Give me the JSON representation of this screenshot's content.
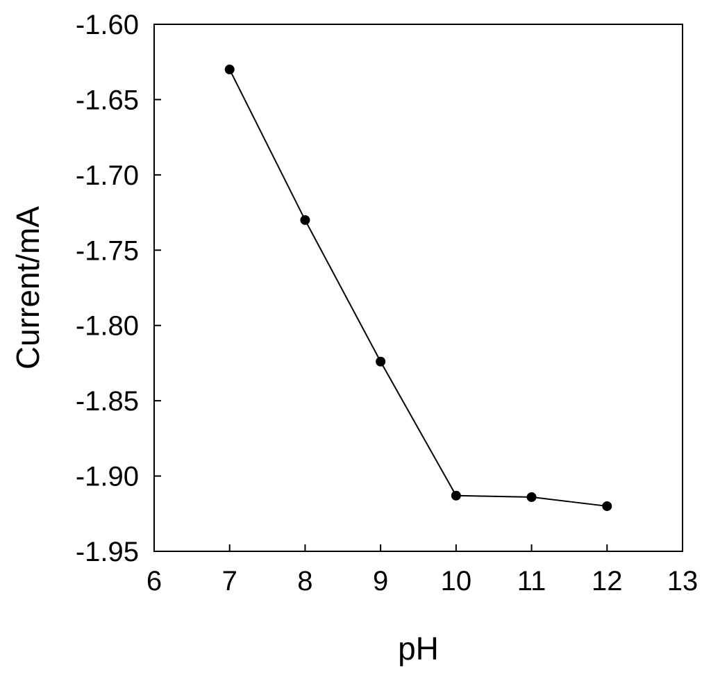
{
  "chart_data": {
    "type": "line",
    "title": "",
    "xlabel": "pH",
    "ylabel": "Current/mA",
    "xlim": [
      6,
      13
    ],
    "ylim": [
      -1.95,
      -1.6
    ],
    "x_ticks": [
      "6",
      "7",
      "8",
      "9",
      "10",
      "11",
      "12",
      "13"
    ],
    "y_ticks": [
      "-1.60",
      "-1.65",
      "-1.70",
      "-1.75",
      "-1.80",
      "-1.85",
      "-1.90",
      "-1.95"
    ],
    "grid": false,
    "legend": "none",
    "series": [
      {
        "x": [
          7,
          8,
          9,
          10,
          11,
          12
        ],
        "y": [
          -1.63,
          -1.73,
          -1.824,
          -1.913,
          -1.914,
          -1.92
        ],
        "color": "#000000",
        "marker": "filled-circle"
      }
    ]
  }
}
